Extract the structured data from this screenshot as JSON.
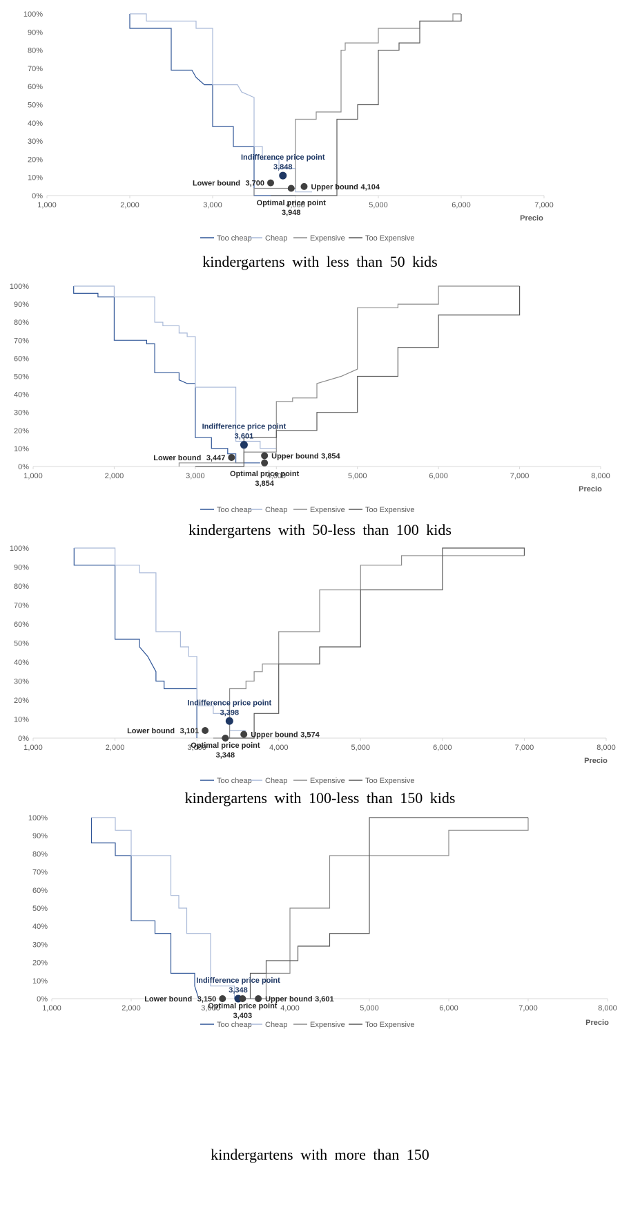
{
  "colors": {
    "too_cheap": "#2f5597",
    "cheap": "#a9b9d8",
    "expensive": "#8c8c8c",
    "too_expensive": "#595959",
    "indifference_marker": "#1f3864",
    "bound_marker": "#404040",
    "axis": "#d9d9d9",
    "tick_text": "#595959"
  },
  "legend": [
    "Too cheap",
    "Cheap",
    "Expensive",
    "Too Expensive"
  ],
  "chart_data": [
    {
      "type": "line",
      "caption": "kindergartens with less than 50 kids",
      "xlabel": "Precio",
      "xlim": [
        1000,
        7000
      ],
      "xticks": [
        "1,000",
        "2,000",
        "3,000",
        "4,000",
        "5,000",
        "6,000",
        "7,000"
      ],
      "yticks": [
        "0%",
        "10%",
        "20%",
        "30%",
        "40%",
        "50%",
        "60%",
        "70%",
        "80%",
        "90%",
        "100%"
      ],
      "ylim": [
        0,
        100
      ],
      "series": [
        {
          "name": "Too cheap",
          "x": [
            2000,
            2000,
            2500,
            2500,
            2750,
            2800,
            2900,
            3000,
            3000,
            3250,
            3250,
            3500,
            3500,
            4000
          ],
          "y": [
            100,
            92,
            92,
            69,
            69,
            65,
            61,
            61,
            38,
            38,
            27,
            27,
            0,
            0
          ]
        },
        {
          "name": "Cheap",
          "x": [
            2000,
            2200,
            2200,
            2800,
            2800,
            3000,
            3000,
            3300,
            3350,
            3500,
            3500,
            3600,
            3600,
            3800,
            3800,
            4000,
            4000,
            4200
          ],
          "y": [
            100,
            100,
            96,
            96,
            92,
            92,
            61,
            61,
            57,
            54,
            27,
            27,
            20,
            20,
            15,
            15,
            2,
            2
          ]
        },
        {
          "name": "Expensive",
          "x": [
            3500,
            3500,
            4000,
            4000,
            4250,
            4250,
            4550,
            4550,
            4600,
            4600,
            5000,
            5000,
            5500,
            5500,
            5900,
            5900,
            6000
          ],
          "y": [
            0,
            4,
            4,
            42,
            42,
            46,
            46,
            80,
            80,
            84,
            84,
            92,
            92,
            96,
            96,
            100,
            100
          ]
        },
        {
          "name": "Too Expensive",
          "x": [
            3700,
            4500,
            4500,
            4750,
            4750,
            5000,
            5000,
            5250,
            5250,
            5500,
            5500,
            6000,
            6000
          ],
          "y": [
            0,
            0,
            42,
            42,
            50,
            50,
            80,
            80,
            84,
            84,
            96,
            96,
            100
          ]
        }
      ],
      "annotations": {
        "indifference": {
          "label": "Indifference price point",
          "value": "3,848",
          "x": 3848,
          "y": 11
        },
        "lower": {
          "label": "Lower bound",
          "value": "3,700",
          "x": 3700,
          "y": 7
        },
        "upper": {
          "label": "Upper bound",
          "value": "4,104",
          "x": 4104,
          "y": 5
        },
        "optimal": {
          "label": "Optimal price point",
          "value": "3,948",
          "x": 3948,
          "y": 4
        }
      }
    },
    {
      "type": "line",
      "caption": "kindergartens with 50-less than 100 kids",
      "xlabel": "Precio",
      "xlim": [
        1000,
        8000
      ],
      "xticks": [
        "1,000",
        "2,000",
        "3,000",
        "4,000",
        "5,000",
        "6,000",
        "7,000",
        "8,000"
      ],
      "yticks": [
        "0%",
        "10%",
        "20%",
        "30%",
        "40%",
        "50%",
        "60%",
        "70%",
        "80%",
        "90%",
        "100%"
      ],
      "ylim": [
        0,
        100
      ],
      "series": [
        {
          "name": "Too cheap",
          "x": [
            1500,
            1500,
            1800,
            1800,
            2000,
            2000,
            2400,
            2400,
            2500,
            2500,
            2800,
            2800,
            2900,
            3000,
            3000,
            3200,
            3200,
            3400,
            3400,
            3500,
            3500,
            3800
          ],
          "y": [
            100,
            96,
            96,
            94,
            94,
            70,
            70,
            68,
            68,
            52,
            52,
            48,
            46,
            46,
            16,
            16,
            10,
            10,
            7,
            7,
            2,
            2
          ]
        },
        {
          "name": "Cheap",
          "x": [
            1500,
            2000,
            2000,
            2500,
            2500,
            2600,
            2600,
            2800,
            2800,
            2900,
            2900,
            3000,
            3000,
            3500,
            3500,
            3800,
            3800,
            4000
          ],
          "y": [
            100,
            100,
            94,
            94,
            80,
            80,
            78,
            78,
            74,
            74,
            72,
            72,
            44,
            44,
            14,
            14,
            10,
            10
          ]
        },
        {
          "name": "Expensive",
          "x": [
            2800,
            2800,
            3600,
            3600,
            4000,
            4000,
            4200,
            4200,
            4500,
            4500,
            4800,
            4900,
            5000,
            5000,
            5500,
            5500,
            6000,
            6000,
            7000
          ],
          "y": [
            0,
            2,
            2,
            8,
            8,
            36,
            36,
            38,
            38,
            46,
            50,
            52,
            54,
            88,
            88,
            90,
            90,
            100,
            100
          ]
        },
        {
          "name": "Too Expensive",
          "x": [
            3000,
            3000,
            3600,
            3600,
            4000,
            4000,
            4500,
            4500,
            5000,
            5000,
            5500,
            5500,
            6000,
            6000,
            7000,
            7000
          ],
          "y": [
            0,
            0,
            0,
            16,
            16,
            20,
            20,
            30,
            30,
            50,
            50,
            66,
            66,
            84,
            84,
            100
          ]
        }
      ],
      "annotations": {
        "indifference": {
          "label": "Indifference price point",
          "value": "3,601",
          "x": 3601,
          "y": 12
        },
        "lower": {
          "label": "Lower bound",
          "value": "3,447",
          "x": 3447,
          "y": 5
        },
        "upper": {
          "label": "Upper bound",
          "value": "3,854",
          "x": 3854,
          "y": 6
        },
        "optimal": {
          "label": "Optimal price point",
          "value": "3,854",
          "x": 3854,
          "y": 2
        }
      }
    },
    {
      "type": "line",
      "caption": "kindergartens with 100-less than 150 kids",
      "xlabel": "Precio",
      "xlim": [
        1000,
        8000
      ],
      "xticks": [
        "1,000",
        "2,000",
        "3,000",
        "4,000",
        "5,000",
        "6,000",
        "7,000",
        "8,000"
      ],
      "yticks": [
        "0%",
        "10%",
        "20%",
        "30%",
        "40%",
        "50%",
        "60%",
        "70%",
        "80%",
        "90%",
        "100%"
      ],
      "ylim": [
        0,
        100
      ],
      "series": [
        {
          "name": "Too cheap",
          "x": [
            1500,
            1500,
            2000,
            2000,
            2300,
            2300,
            2400,
            2450,
            2500,
            2500,
            2600,
            2600,
            3000,
            3000
          ],
          "y": [
            100,
            91,
            91,
            52,
            52,
            48,
            43,
            39,
            35,
            30,
            30,
            26,
            26,
            0
          ]
        },
        {
          "name": "Cheap",
          "x": [
            1500,
            2000,
            2000,
            2300,
            2300,
            2500,
            2500,
            2800,
            2800,
            2900,
            2900,
            3000,
            3000,
            3200,
            3200,
            3400,
            3400,
            3600
          ],
          "y": [
            100,
            100,
            91,
            91,
            87,
            87,
            56,
            56,
            48,
            48,
            43,
            43,
            17,
            17,
            13,
            13,
            4,
            4
          ]
        },
        {
          "name": "Expensive",
          "x": [
            3200,
            3400,
            3400,
            3600,
            3600,
            3700,
            3700,
            3800,
            3800,
            4000,
            4000,
            4500,
            4500,
            5000,
            5000,
            5500,
            5500,
            6000,
            6000,
            7000
          ],
          "y": [
            0,
            0,
            26,
            26,
            30,
            30,
            35,
            35,
            39,
            39,
            56,
            56,
            78,
            78,
            91,
            91,
            96,
            96,
            96,
            96
          ]
        },
        {
          "name": "Too Expensive",
          "x": [
            3300,
            3700,
            3700,
            4000,
            4000,
            4500,
            4500,
            5000,
            5000,
            6000,
            6000,
            7000,
            7000
          ],
          "y": [
            0,
            0,
            13,
            13,
            39,
            39,
            48,
            48,
            78,
            78,
            100,
            100,
            96
          ]
        }
      ],
      "annotations": {
        "indifference": {
          "label": "Indifference price point",
          "value": "3,398",
          "x": 3398,
          "y": 9
        },
        "lower": {
          "label": "Lower bound",
          "value": "3,101",
          "x": 3101,
          "y": 4
        },
        "upper": {
          "label": "Upper bound",
          "value": "3,574",
          "x": 3574,
          "y": 2
        },
        "optimal": {
          "label": "Optimal price point",
          "value": "3,348",
          "x": 3348,
          "y": 0
        }
      }
    },
    {
      "type": "line",
      "caption": "kindergartens with more than 150",
      "xlabel": "Precio",
      "xlim": [
        1000,
        8000
      ],
      "xticks": [
        "1,000",
        "2,000",
        "3,000",
        "4,000",
        "5,000",
        "6,000",
        "7,000",
        "8,000"
      ],
      "yticks": [
        "0%",
        "10%",
        "20%",
        "30%",
        "40%",
        "50%",
        "60%",
        "70%",
        "80%",
        "90%",
        "100%"
      ],
      "ylim": [
        0,
        100
      ],
      "series": [
        {
          "name": "Too cheap",
          "x": [
            1500,
            1500,
            1800,
            1800,
            2000,
            2000,
            2300,
            2300,
            2500,
            2500,
            2800,
            2800,
            2850
          ],
          "y": [
            100,
            86,
            86,
            79,
            79,
            43,
            43,
            36,
            36,
            14,
            14,
            7,
            0
          ]
        },
        {
          "name": "Cheap",
          "x": [
            1500,
            1800,
            1800,
            2000,
            2000,
            2500,
            2500,
            2600,
            2600,
            2700,
            2700,
            3000,
            3000,
            3300,
            3300,
            3600
          ],
          "y": [
            100,
            100,
            93,
            93,
            79,
            79,
            57,
            57,
            50,
            50,
            36,
            36,
            7,
            7,
            0,
            0
          ]
        },
        {
          "name": "Expensive",
          "x": [
            3400,
            3700,
            3700,
            4000,
            4000,
            4500,
            4500,
            5000,
            5000,
            6000,
            6000,
            7000,
            7000
          ],
          "y": [
            0,
            0,
            14,
            14,
            50,
            50,
            79,
            79,
            79,
            79,
            93,
            93,
            100
          ]
        },
        {
          "name": "Too Expensive",
          "x": [
            3500,
            3500,
            3700,
            3700,
            4100,
            4100,
            4500,
            4500,
            5000,
            5000,
            7000
          ],
          "y": [
            0,
            14,
            14,
            21,
            21,
            29,
            29,
            36,
            36,
            100,
            100
          ]
        }
      ],
      "annotations": {
        "indifference": {
          "label": "Indifference price point",
          "value": "3,348",
          "x": 3348,
          "y": 0
        },
        "lower": {
          "label": "Lower bound",
          "value": "3,150",
          "x": 3150,
          "y": 0
        },
        "upper": {
          "label": "Upper bound",
          "value": "3,601",
          "x": 3601,
          "y": 0
        },
        "optimal": {
          "label": "Optimal price point",
          "value": "3,403",
          "x": 3403,
          "y": 0
        }
      }
    }
  ]
}
